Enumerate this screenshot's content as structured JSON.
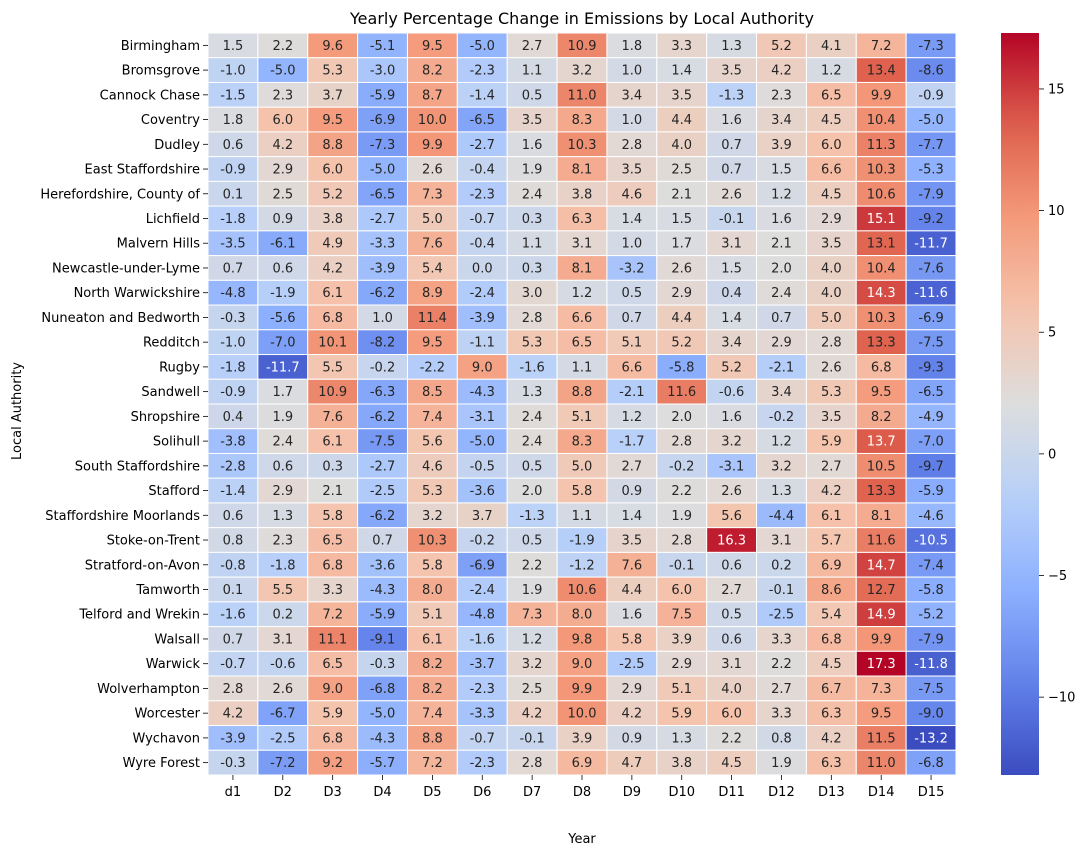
{
  "chart_data": {
    "type": "heatmap",
    "title": "Yearly Percentage Change in Emissions by Local Authority",
    "xlabel": "Year",
    "ylabel": "Local Authority",
    "colormap": "coolwarm",
    "vmin": -13.2,
    "vmax": 17.3,
    "colorbar_ticks": [
      "15",
      "10",
      "5",
      "0",
      "−5",
      "−10"
    ],
    "colorbar_tick_values": [
      15,
      10,
      5,
      0,
      -5,
      -10
    ],
    "columns": [
      "d1",
      "D2",
      "D3",
      "D4",
      "D5",
      "D6",
      "D7",
      "D8",
      "D9",
      "D10",
      "D11",
      "D12",
      "D13",
      "D14",
      "D15"
    ],
    "rows": [
      "Birmingham",
      "Bromsgrove",
      "Cannock Chase",
      "Coventry",
      "Dudley",
      "East Staffordshire",
      "Herefordshire, County of",
      "Lichfield",
      "Malvern Hills",
      "Newcastle-under-Lyme",
      "North Warwickshire",
      "Nuneaton and Bedworth",
      "Redditch",
      "Rugby",
      "Sandwell",
      "Shropshire",
      "Solihull",
      "South Staffordshire",
      "Stafford",
      "Staffordshire Moorlands",
      "Stoke-on-Trent",
      "Stratford-on-Avon",
      "Tamworth",
      "Telford and Wrekin",
      "Walsall",
      "Warwick",
      "Wolverhampton",
      "Worcester",
      "Wychavon",
      "Wyre Forest"
    ],
    "values": [
      [
        1.5,
        2.2,
        9.6,
        -5.1,
        9.5,
        -5.0,
        2.7,
        10.9,
        1.8,
        3.3,
        1.3,
        5.2,
        4.1,
        7.2,
        -7.3
      ],
      [
        -1.0,
        -5.0,
        5.3,
        -3.0,
        8.2,
        -2.3,
        1.1,
        3.2,
        1.0,
        1.4,
        3.5,
        4.2,
        1.2,
        13.4,
        -8.6
      ],
      [
        -1.5,
        2.3,
        3.7,
        -5.9,
        8.7,
        -1.4,
        0.5,
        11.0,
        3.4,
        3.5,
        -1.3,
        2.3,
        6.5,
        9.9,
        -0.9
      ],
      [
        1.8,
        6.0,
        9.5,
        -6.9,
        10.0,
        -6.5,
        3.5,
        8.3,
        1.0,
        4.4,
        1.6,
        3.4,
        4.5,
        10.4,
        -5.0
      ],
      [
        0.6,
        4.2,
        8.8,
        -7.3,
        9.9,
        -2.7,
        1.6,
        10.3,
        2.8,
        4.0,
        0.7,
        3.9,
        6.0,
        11.3,
        -7.7
      ],
      [
        -0.9,
        2.9,
        6.0,
        -5.0,
        2.6,
        -0.4,
        1.9,
        8.1,
        3.5,
        2.5,
        0.7,
        1.5,
        6.6,
        10.3,
        -5.3
      ],
      [
        0.1,
        2.5,
        5.2,
        -6.5,
        7.3,
        -2.3,
        2.4,
        3.8,
        4.6,
        2.1,
        2.6,
        1.2,
        4.5,
        10.6,
        -7.9
      ],
      [
        -1.8,
        0.9,
        3.8,
        -2.7,
        5.0,
        -0.7,
        0.3,
        6.3,
        1.4,
        1.5,
        -0.1,
        1.6,
        2.9,
        15.1,
        -9.2
      ],
      [
        -3.5,
        -6.1,
        4.9,
        -3.3,
        7.6,
        -0.4,
        1.1,
        3.1,
        1.0,
        1.7,
        3.1,
        2.1,
        3.5,
        13.1,
        -11.7
      ],
      [
        0.7,
        0.6,
        4.2,
        -3.9,
        5.4,
        0.0,
        0.3,
        8.1,
        -3.2,
        2.6,
        1.5,
        2.0,
        4.0,
        10.4,
        -7.6
      ],
      [
        -4.8,
        -1.9,
        6.1,
        -6.2,
        8.9,
        -2.4,
        3.0,
        1.2,
        0.5,
        2.9,
        0.4,
        2.4,
        4.0,
        14.3,
        -11.6
      ],
      [
        -0.3,
        -5.6,
        6.8,
        1.0,
        11.4,
        -3.9,
        2.8,
        6.6,
        0.7,
        4.4,
        1.4,
        0.7,
        5.0,
        10.3,
        -6.9
      ],
      [
        -1.0,
        -7.0,
        10.1,
        -8.2,
        9.5,
        -1.1,
        5.3,
        6.5,
        5.1,
        5.2,
        3.4,
        2.9,
        2.8,
        13.3,
        -7.5
      ],
      [
        -1.8,
        -11.7,
        5.5,
        -0.2,
        -2.2,
        9.0,
        -1.6,
        1.1,
        6.6,
        -5.8,
        5.2,
        -2.1,
        2.6,
        6.8,
        -9.3
      ],
      [
        -0.9,
        1.7,
        10.9,
        -6.3,
        8.5,
        -4.3,
        1.3,
        8.8,
        -2.1,
        11.6,
        -0.6,
        3.4,
        5.3,
        9.5,
        -6.5
      ],
      [
        0.4,
        1.9,
        7.6,
        -6.2,
        7.4,
        -3.1,
        2.4,
        5.1,
        1.2,
        2.0,
        1.6,
        -0.2,
        3.5,
        8.2,
        -4.9
      ],
      [
        -3.8,
        2.4,
        6.1,
        -7.5,
        5.6,
        -5.0,
        2.4,
        8.3,
        -1.7,
        2.8,
        3.2,
        1.2,
        5.9,
        13.7,
        -7.0
      ],
      [
        -2.8,
        0.6,
        0.3,
        -2.7,
        4.6,
        -0.5,
        0.5,
        5.0,
        2.7,
        -0.2,
        -3.1,
        3.2,
        2.7,
        10.5,
        -9.7
      ],
      [
        -1.4,
        2.9,
        2.1,
        -2.5,
        5.3,
        -3.6,
        2.0,
        5.8,
        0.9,
        2.2,
        2.6,
        1.3,
        4.2,
        13.3,
        -5.9
      ],
      [
        0.6,
        1.3,
        5.8,
        -6.2,
        3.2,
        3.7,
        -1.3,
        1.1,
        1.4,
        1.9,
        5.6,
        -4.4,
        6.1,
        8.1,
        -4.6
      ],
      [
        0.8,
        2.3,
        6.5,
        0.7,
        10.3,
        -0.2,
        0.5,
        -1.9,
        3.5,
        2.8,
        16.3,
        3.1,
        5.7,
        11.6,
        -10.5
      ],
      [
        -0.8,
        -1.8,
        6.8,
        -3.6,
        5.8,
        -6.9,
        2.2,
        -1.2,
        7.6,
        -0.1,
        0.6,
        0.2,
        6.9,
        14.7,
        -7.4
      ],
      [
        0.1,
        5.5,
        3.3,
        -4.3,
        8.0,
        -2.4,
        1.9,
        10.6,
        4.4,
        6.0,
        2.7,
        -0.1,
        8.6,
        12.7,
        -5.8
      ],
      [
        -1.6,
        0.2,
        7.2,
        -5.9,
        5.1,
        -4.8,
        7.3,
        8.0,
        1.6,
        7.5,
        0.5,
        -2.5,
        5.4,
        14.9,
        -5.2
      ],
      [
        0.7,
        3.1,
        11.1,
        -9.1,
        6.1,
        -1.6,
        1.2,
        9.8,
        5.8,
        3.9,
        0.6,
        3.3,
        6.8,
        9.9,
        -7.9
      ],
      [
        -0.7,
        -0.6,
        6.5,
        -0.3,
        8.2,
        -3.7,
        3.2,
        9.0,
        -2.5,
        2.9,
        3.1,
        2.2,
        4.5,
        17.3,
        -11.8
      ],
      [
        2.8,
        2.6,
        9.0,
        -6.8,
        8.2,
        -2.3,
        2.5,
        9.9,
        2.9,
        5.1,
        4.0,
        2.7,
        6.7,
        7.3,
        -7.5
      ],
      [
        4.2,
        -6.7,
        5.9,
        -5.0,
        7.4,
        -3.3,
        4.2,
        10.0,
        4.2,
        5.9,
        6.0,
        3.3,
        6.3,
        9.5,
        -9.0
      ],
      [
        -3.9,
        -2.5,
        6.8,
        -4.3,
        8.8,
        -0.7,
        -0.1,
        3.9,
        0.9,
        1.3,
        2.2,
        0.8,
        4.2,
        11.5,
        -13.2
      ],
      [
        -0.3,
        -7.2,
        9.2,
        -5.7,
        7.2,
        -2.3,
        2.8,
        6.9,
        4.7,
        3.8,
        4.5,
        1.9,
        6.3,
        11.0,
        -6.8
      ]
    ]
  }
}
